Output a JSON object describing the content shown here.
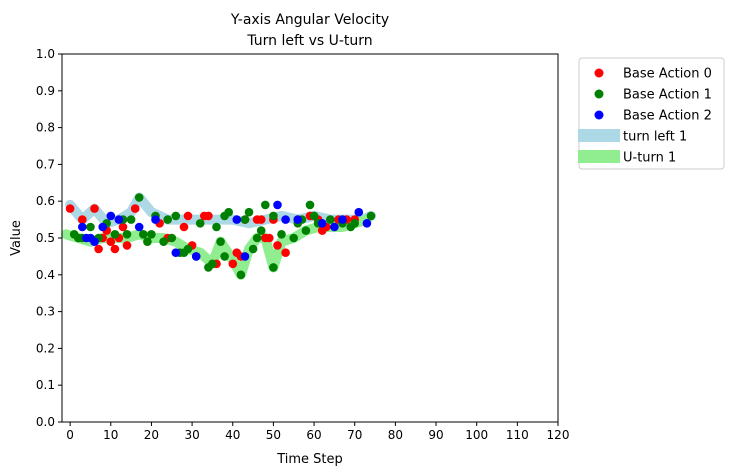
{
  "chart_data": {
    "type": "scatter",
    "title": "Y-axis Angular Velocity",
    "subtitle": "Turn left vs U-turn",
    "xlabel": "Time Step",
    "ylabel": "Value",
    "xlim": [
      -2,
      120
    ],
    "ylim": [
      0,
      1
    ],
    "x_ticks": [
      "0",
      "10",
      "20",
      "30",
      "40",
      "50",
      "60",
      "70",
      "80",
      "90",
      "100",
      "110",
      "120"
    ],
    "y_ticks": [
      "0.0",
      "0.1",
      "0.2",
      "0.3",
      "0.4",
      "0.5",
      "0.6",
      "0.7",
      "0.8",
      "0.9",
      "1.0"
    ],
    "grid": false,
    "legend_position": "outside-upper-right",
    "series": [
      {
        "name": "Base Action 0",
        "kind": "scatter",
        "color": "#ff0000",
        "points": [
          [
            0,
            0.58
          ],
          [
            3,
            0.55
          ],
          [
            6,
            0.58
          ],
          [
            7,
            0.47
          ],
          [
            8,
            0.5
          ],
          [
            9,
            0.52
          ],
          [
            10,
            0.49
          ],
          [
            11,
            0.47
          ],
          [
            12,
            0.5
          ],
          [
            13,
            0.53
          ],
          [
            14,
            0.48
          ],
          [
            16,
            0.58
          ],
          [
            22,
            0.54
          ],
          [
            24,
            0.5
          ],
          [
            28,
            0.53
          ],
          [
            29,
            0.56
          ],
          [
            30,
            0.48
          ],
          [
            33,
            0.56
          ],
          [
            34,
            0.56
          ],
          [
            36,
            0.43
          ],
          [
            40,
            0.43
          ],
          [
            41,
            0.46
          ],
          [
            42,
            0.45
          ],
          [
            43,
            0.55
          ],
          [
            46,
            0.55
          ],
          [
            47,
            0.55
          ],
          [
            48,
            0.5
          ],
          [
            49,
            0.5
          ],
          [
            50,
            0.55
          ],
          [
            51,
            0.48
          ],
          [
            53,
            0.46
          ],
          [
            56,
            0.55
          ],
          [
            59,
            0.56
          ],
          [
            61,
            0.55
          ],
          [
            62,
            0.52
          ],
          [
            63,
            0.53
          ],
          [
            66,
            0.55
          ],
          [
            68,
            0.55
          ],
          [
            70,
            0.55
          ]
        ]
      },
      {
        "name": "Base Action 1",
        "kind": "scatter",
        "color": "#008000",
        "points": [
          [
            1,
            0.51
          ],
          [
            2,
            0.5
          ],
          [
            3,
            0.5
          ],
          [
            5,
            0.53
          ],
          [
            7,
            0.5
          ],
          [
            9,
            0.54
          ],
          [
            11,
            0.51
          ],
          [
            13,
            0.55
          ],
          [
            14,
            0.51
          ],
          [
            15,
            0.55
          ],
          [
            17,
            0.61
          ],
          [
            18,
            0.51
          ],
          [
            19,
            0.49
          ],
          [
            20,
            0.51
          ],
          [
            21,
            0.56
          ],
          [
            23,
            0.49
          ],
          [
            24,
            0.55
          ],
          [
            25,
            0.5
          ],
          [
            26,
            0.56
          ],
          [
            27,
            0.46
          ],
          [
            28,
            0.46
          ],
          [
            29,
            0.47
          ],
          [
            31,
            0.45
          ],
          [
            32,
            0.54
          ],
          [
            34,
            0.42
          ],
          [
            35,
            0.43
          ],
          [
            36,
            0.53
          ],
          [
            37,
            0.49
          ],
          [
            38,
            0.56
          ],
          [
            38,
            0.45
          ],
          [
            39,
            0.57
          ],
          [
            42,
            0.4
          ],
          [
            43,
            0.55
          ],
          [
            44,
            0.57
          ],
          [
            45,
            0.47
          ],
          [
            46,
            0.5
          ],
          [
            47,
            0.52
          ],
          [
            48,
            0.59
          ],
          [
            50,
            0.42
          ],
          [
            50,
            0.56
          ],
          [
            52,
            0.51
          ],
          [
            55,
            0.5
          ],
          [
            56,
            0.54
          ],
          [
            57,
            0.55
          ],
          [
            58,
            0.52
          ],
          [
            59,
            0.59
          ],
          [
            60,
            0.56
          ],
          [
            61,
            0.54
          ],
          [
            64,
            0.55
          ],
          [
            67,
            0.54
          ],
          [
            69,
            0.53
          ],
          [
            70,
            0.54
          ],
          [
            74,
            0.56
          ]
        ]
      },
      {
        "name": "Base Action 2",
        "kind": "scatter",
        "color": "#0000ff",
        "points": [
          [
            3,
            0.53
          ],
          [
            4,
            0.5
          ],
          [
            5,
            0.5
          ],
          [
            6,
            0.49
          ],
          [
            8,
            0.53
          ],
          [
            10,
            0.56
          ],
          [
            12,
            0.55
          ],
          [
            17,
            0.53
          ],
          [
            21,
            0.55
          ],
          [
            26,
            0.46
          ],
          [
            31,
            0.45
          ],
          [
            41,
            0.55
          ],
          [
            43,
            0.45
          ],
          [
            51,
            0.59
          ],
          [
            53,
            0.55
          ],
          [
            56,
            0.55
          ],
          [
            62,
            0.54
          ],
          [
            65,
            0.53
          ],
          [
            67,
            0.55
          ],
          [
            71,
            0.57
          ],
          [
            73,
            0.54
          ]
        ]
      },
      {
        "name": "turn left 1",
        "kind": "band",
        "color": "#add8e6",
        "points": [
          [
            0,
            0.59
          ],
          [
            3,
            0.55
          ],
          [
            6,
            0.58
          ],
          [
            9,
            0.54
          ],
          [
            12,
            0.55
          ],
          [
            15,
            0.57
          ],
          [
            17,
            0.61
          ],
          [
            20,
            0.57
          ],
          [
            24,
            0.55
          ],
          [
            28,
            0.55
          ],
          [
            32,
            0.55
          ],
          [
            36,
            0.55
          ],
          [
            40,
            0.55
          ],
          [
            44,
            0.54
          ],
          [
            48,
            0.55
          ],
          [
            52,
            0.56
          ],
          [
            56,
            0.55
          ],
          [
            60,
            0.56
          ],
          [
            64,
            0.55
          ],
          [
            68,
            0.55
          ],
          [
            72,
            0.55
          ],
          [
            74,
            0.56
          ]
        ]
      },
      {
        "name": "U-turn 1",
        "kind": "band",
        "color": "#90ee90",
        "points": [
          [
            -1,
            0.51
          ],
          [
            2,
            0.5
          ],
          [
            5,
            0.49
          ],
          [
            8,
            0.5
          ],
          [
            11,
            0.5
          ],
          [
            14,
            0.5
          ],
          [
            17,
            0.51
          ],
          [
            20,
            0.5
          ],
          [
            23,
            0.5
          ],
          [
            26,
            0.49
          ],
          [
            29,
            0.47
          ],
          [
            32,
            0.46
          ],
          [
            35,
            0.43
          ],
          [
            37,
            0.49
          ],
          [
            40,
            0.44
          ],
          [
            42,
            0.4
          ],
          [
            44,
            0.47
          ],
          [
            46,
            0.5
          ],
          [
            48,
            0.5
          ],
          [
            50,
            0.42
          ],
          [
            52,
            0.49
          ],
          [
            55,
            0.5
          ],
          [
            58,
            0.52
          ],
          [
            61,
            0.53
          ],
          [
            64,
            0.53
          ],
          [
            67,
            0.53
          ],
          [
            70,
            0.54
          ],
          [
            73,
            0.55
          ]
        ]
      }
    ]
  }
}
